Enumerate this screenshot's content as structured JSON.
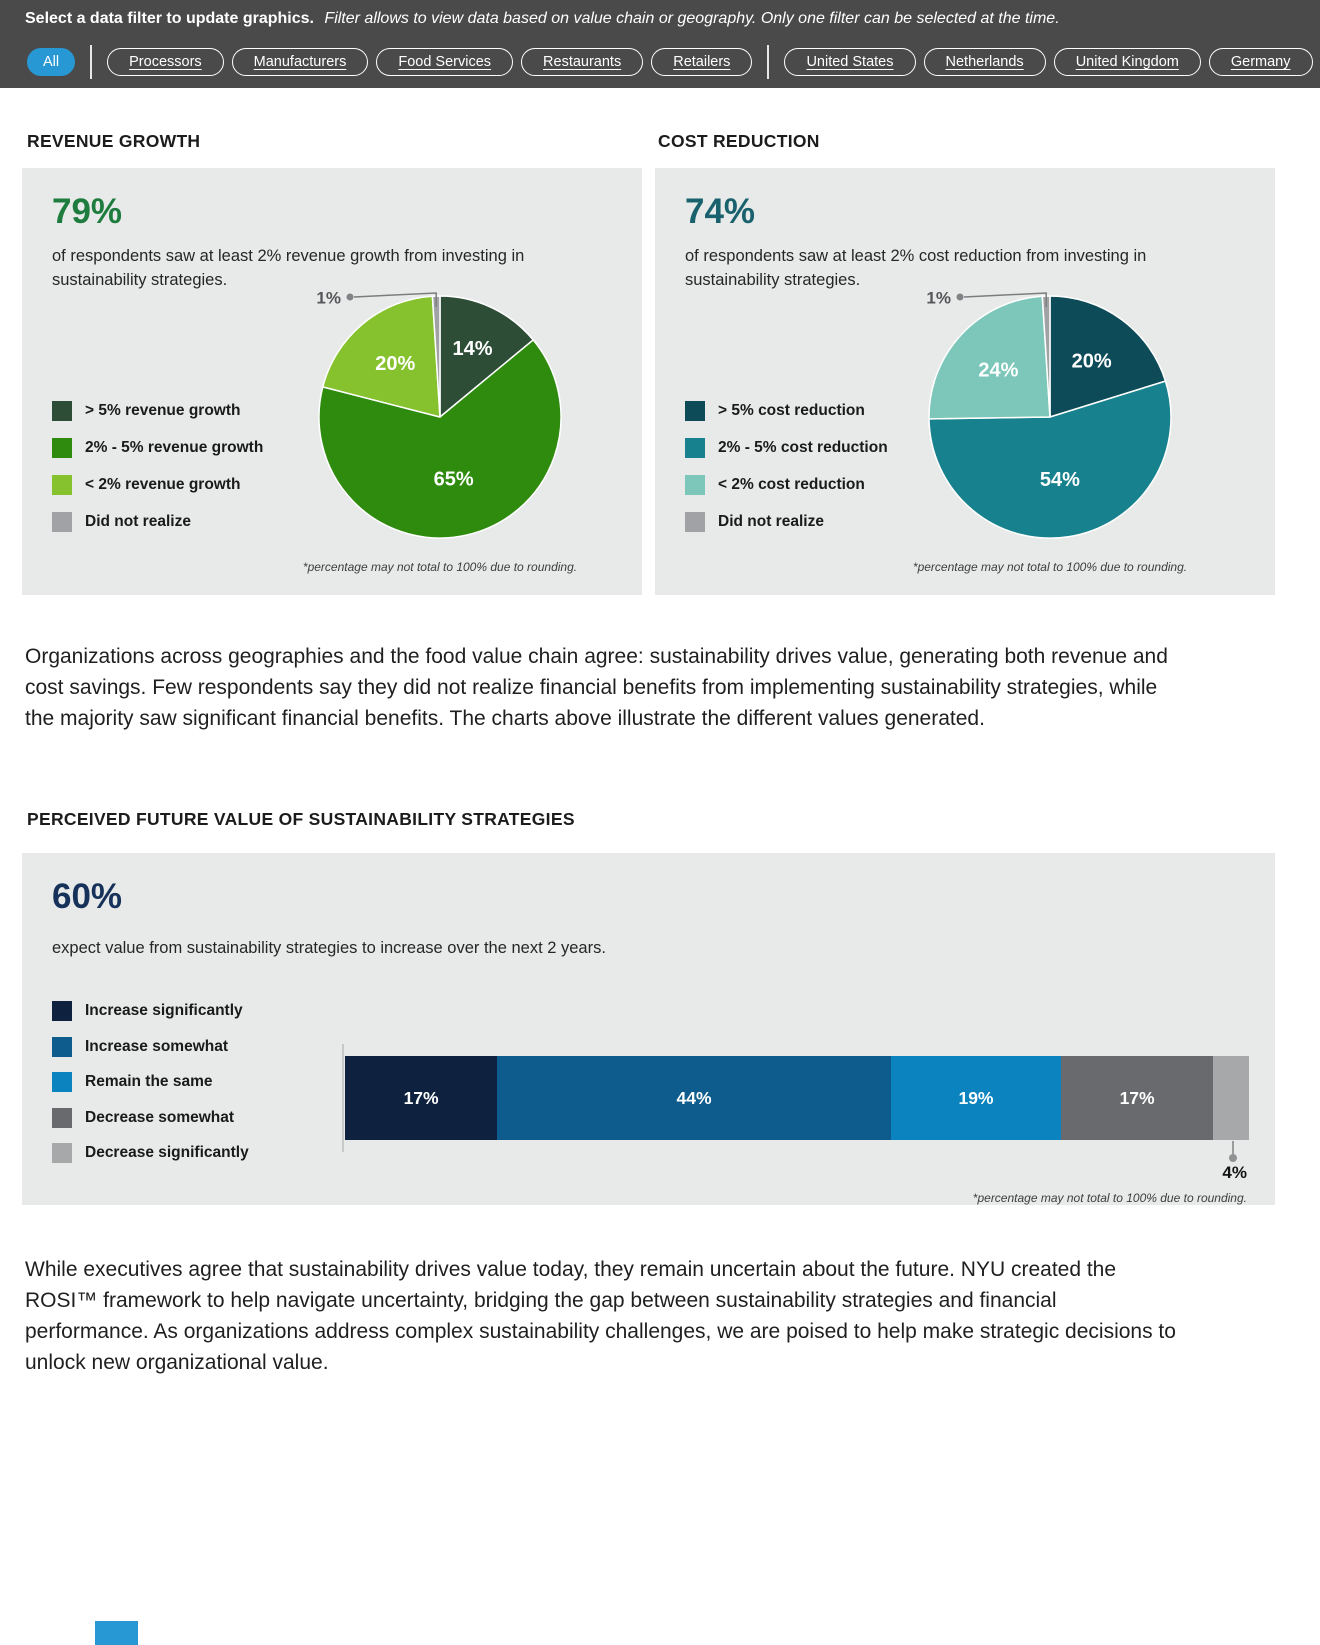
{
  "filter_bar": {
    "title_bold": "Select a data filter to update graphics.",
    "title_italic": "Filter allows to view data based on value chain or geography. Only one filter can be selected at the time.",
    "active_filter": "All",
    "value_chain_filters": [
      "Processors",
      "Manufacturers",
      "Food Services",
      "Restaurants",
      "Retailers"
    ],
    "geography_filters": [
      "United States",
      "Netherlands",
      "United Kingdom",
      "Germany"
    ],
    "active_color": "#2898d5",
    "bar_color": "#4a4a4b"
  },
  "chart_data": [
    {
      "type": "pie",
      "title": "REVENUE GROWTH",
      "stat": "79%",
      "stat_color": "#1e7c3e",
      "description": "of respondents saw at least 2% revenue growth from investing in sustainability strategies.",
      "legend_position": "left",
      "slices": [
        {
          "label": "> 5% revenue growth",
          "value": 14,
          "color": "#2d4d36"
        },
        {
          "label": "2% - 5% revenue growth",
          "value": 65,
          "color": "#2e8b0e"
        },
        {
          "label": "< 2% revenue growth",
          "value": 20,
          "color": "#85c22e"
        },
        {
          "label": "Did not realize",
          "value": 1,
          "color": "#a0a2a5"
        }
      ],
      "footnote": "*percentage may not total to 100% due to rounding."
    },
    {
      "type": "pie",
      "title": "COST REDUCTION",
      "stat": "74%",
      "stat_color": "#19616d",
      "description": "of respondents saw at least 2% cost reduction from investing in sustainability strategies.",
      "legend_position": "left",
      "slices": [
        {
          "label": "> 5% cost reduction",
          "value": 20,
          "color": "#0d4b58"
        },
        {
          "label": "2% - 5% cost reduction",
          "value": 54,
          "color": "#17818e"
        },
        {
          "label": "< 2% cost reduction",
          "value": 24,
          "color": "#7cc7b9"
        },
        {
          "label": "Did not realize",
          "value": 1,
          "color": "#a0a2a5"
        }
      ],
      "footnote": "*percentage may not total to 100% due to rounding."
    },
    {
      "type": "bar",
      "subtype": "horizontal-stacked",
      "title": "PERCEIVED FUTURE VALUE OF SUSTAINABILITY STRATEGIES",
      "stat": "60%",
      "stat_color": "#16325a",
      "description": "expect value from sustainability strategies to increase over the next 2 years.",
      "legend_position": "left",
      "segments": [
        {
          "label": "Increase significantly",
          "value": 17,
          "color": "#0e2240"
        },
        {
          "label": "Increase somewhat",
          "value": 44,
          "color": "#0d5c8d"
        },
        {
          "label": "Remain the same",
          "value": 19,
          "color": "#0a83be"
        },
        {
          "label": "Decrease somewhat",
          "value": 17,
          "color": "#696a6d"
        },
        {
          "label": "Decrease significantly",
          "value": 4,
          "color": "#a6a8aa",
          "label_position": "below"
        }
      ],
      "footnote": "*percentage may not total to 100% due to rounding."
    }
  ],
  "paragraphs": {
    "p1": "Organizations across geographies and the food value chain agree: sustainability drives value, generating both revenue and cost savings. Few respondents say they did not realize financial benefits from implementing sustainability strategies, while the majority saw significant financial benefits. The charts above illustrate the different values generated.",
    "p2": "While executives agree that sustainability drives value today, they remain uncertain about the future. NYU created the ROSI™ framework to help navigate uncertainty, bridging the gap between sustainability strategies and financial performance. As organizations address complex sustainability challenges, we are poised to help make strategic decisions to unlock new organizational value."
  }
}
